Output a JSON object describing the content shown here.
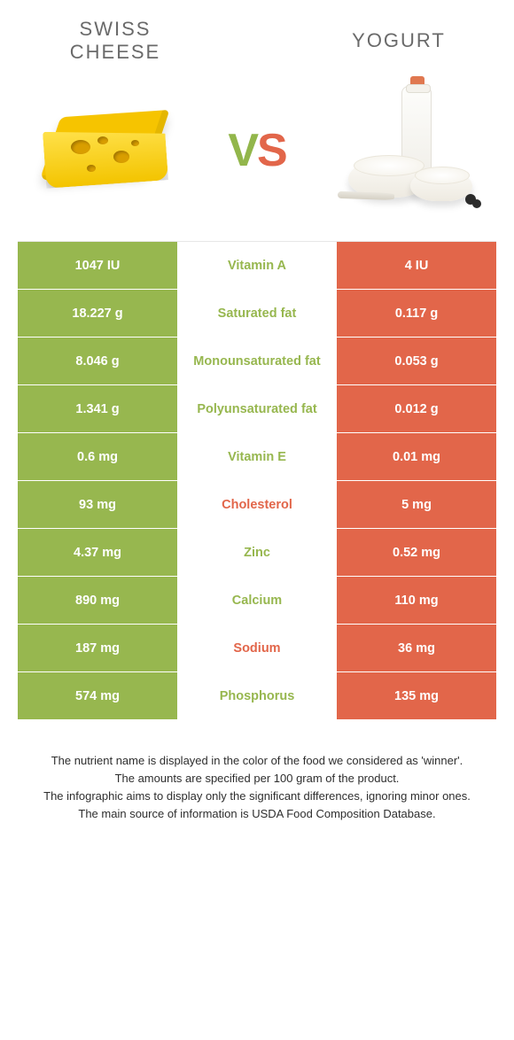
{
  "colors": {
    "green": "#97b74f",
    "orange": "#e2664a",
    "title_grey": "#6a6a6a",
    "text_dark": "#2e2e2e",
    "white": "#ffffff"
  },
  "left_food": {
    "title": "SWISS CHEESE"
  },
  "right_food": {
    "title": "YOGURT"
  },
  "vs": {
    "v": "V",
    "s": "S"
  },
  "rows": [
    {
      "nutrient": "Vitamin A",
      "left": "1047 IU",
      "right": "4 IU",
      "winner": "left"
    },
    {
      "nutrient": "Saturated fat",
      "left": "18.227 g",
      "right": "0.117 g",
      "winner": "left"
    },
    {
      "nutrient": "Monounsaturated fat",
      "left": "8.046 g",
      "right": "0.053 g",
      "winner": "left"
    },
    {
      "nutrient": "Polyunsaturated fat",
      "left": "1.341 g",
      "right": "0.012 g",
      "winner": "left"
    },
    {
      "nutrient": "Vitamin E",
      "left": "0.6 mg",
      "right": "0.01 mg",
      "winner": "left"
    },
    {
      "nutrient": "Cholesterol",
      "left": "93 mg",
      "right": "5 mg",
      "winner": "right"
    },
    {
      "nutrient": "Zinc",
      "left": "4.37 mg",
      "right": "0.52 mg",
      "winner": "left"
    },
    {
      "nutrient": "Calcium",
      "left": "890 mg",
      "right": "110 mg",
      "winner": "left"
    },
    {
      "nutrient": "Sodium",
      "left": "187 mg",
      "right": "36 mg",
      "winner": "right"
    },
    {
      "nutrient": "Phosphorus",
      "left": "574 mg",
      "right": "135 mg",
      "winner": "left"
    }
  ],
  "footnotes": [
    "The nutrient name is displayed in the color of the food we considered as 'winner'.",
    "The amounts are specified per 100 gram of the product.",
    "The infographic aims to display only the significant differences, ignoring minor ones.",
    "The main source of information is USDA Food Composition Database."
  ]
}
